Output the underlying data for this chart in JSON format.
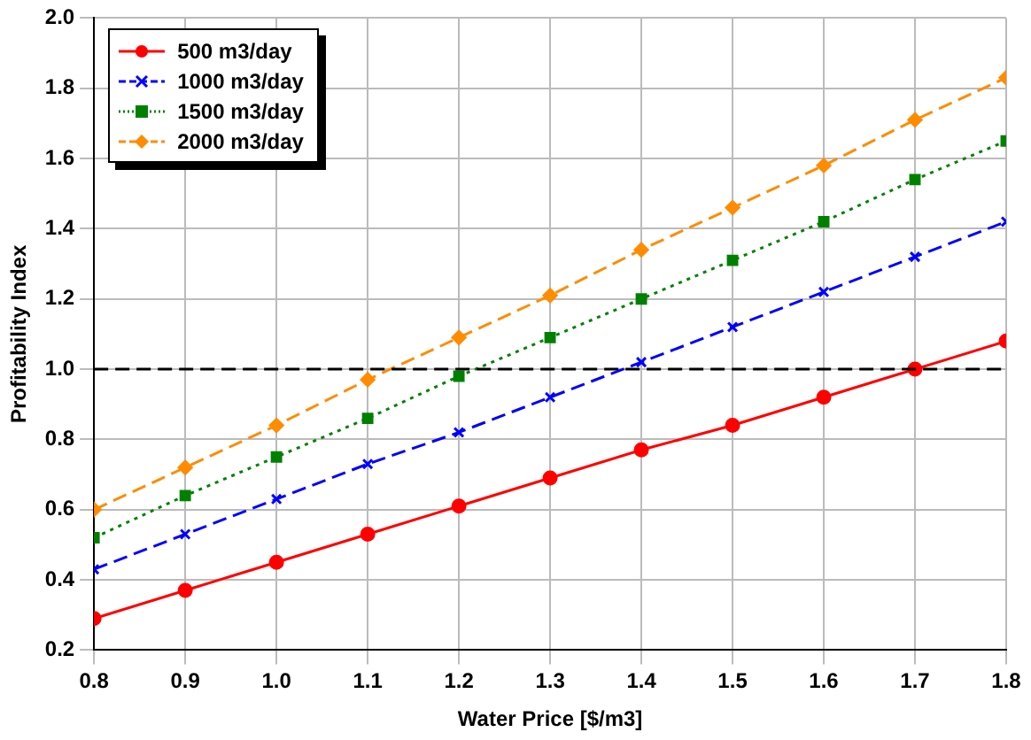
{
  "chart_data": {
    "type": "line",
    "xlabel": "Water Price [$/m3]",
    "ylabel": "Profitability Index",
    "x": [
      0.8,
      0.9,
      1.0,
      1.1,
      1.2,
      1.3,
      1.4,
      1.5,
      1.6,
      1.7,
      1.8
    ],
    "series": [
      {
        "name": "500 m3/day",
        "color": "#ff0000",
        "marker": "circle",
        "line_style": "solid",
        "values": [
          0.29,
          0.37,
          0.45,
          0.53,
          0.61,
          0.69,
          0.77,
          0.84,
          0.92,
          1.0,
          1.08
        ]
      },
      {
        "name": "1000 m3/day",
        "color": "#0000ff",
        "marker": "cross",
        "line_style": "dashed",
        "values": [
          0.43,
          0.53,
          0.63,
          0.73,
          0.82,
          0.92,
          1.02,
          1.12,
          1.22,
          1.32,
          1.42
        ]
      },
      {
        "name": "1500 m3/day",
        "color": "#008000",
        "marker": "square",
        "line_style": "dotted",
        "values": [
          0.52,
          0.64,
          0.75,
          0.86,
          0.98,
          1.09,
          1.2,
          1.31,
          1.42,
          1.54,
          1.65
        ]
      },
      {
        "name": "2000 m3/day",
        "color": "#ff8c00",
        "marker": "diamond",
        "line_style": "dashed",
        "values": [
          0.6,
          0.72,
          0.84,
          0.97,
          1.09,
          1.21,
          1.34,
          1.46,
          1.58,
          1.71,
          1.83
        ]
      }
    ],
    "xlim": [
      0.8,
      1.8
    ],
    "xticks": [
      {
        "value": 0.8,
        "label": "0.8"
      },
      {
        "value": 0.9,
        "label": "0.9"
      },
      {
        "value": 1.0,
        "label": "1.0"
      },
      {
        "value": 1.1,
        "label": "1.1"
      },
      {
        "value": 1.2,
        "label": "1.2"
      },
      {
        "value": 1.3,
        "label": "1.3"
      },
      {
        "value": 1.4,
        "label": "1.4"
      },
      {
        "value": 1.5,
        "label": "1.5"
      },
      {
        "value": 1.6,
        "label": "1.6"
      },
      {
        "value": 1.7,
        "label": "1.7"
      },
      {
        "value": 1.8,
        "label": "1.8"
      }
    ],
    "ylim": [
      0.2,
      2.0
    ],
    "yticks": [
      {
        "value": 0.2,
        "label": "0.2"
      },
      {
        "value": 0.4,
        "label": "0.4"
      },
      {
        "value": 0.6,
        "label": "0.6"
      },
      {
        "value": 0.8,
        "label": "0.8"
      },
      {
        "value": 1.0,
        "label": "1.0"
      },
      {
        "value": 1.2,
        "label": "1.2"
      },
      {
        "value": 1.4,
        "label": "1.4"
      },
      {
        "value": 1.6,
        "label": "1.6"
      },
      {
        "value": 1.8,
        "label": "1.8"
      },
      {
        "value": 2.0,
        "label": "2.0"
      }
    ],
    "ref_lines": [
      {
        "axis": "y",
        "value": 1.0,
        "color": "#000000",
        "line_style": "dashed"
      }
    ],
    "grid": true,
    "legend": "top left"
  }
}
